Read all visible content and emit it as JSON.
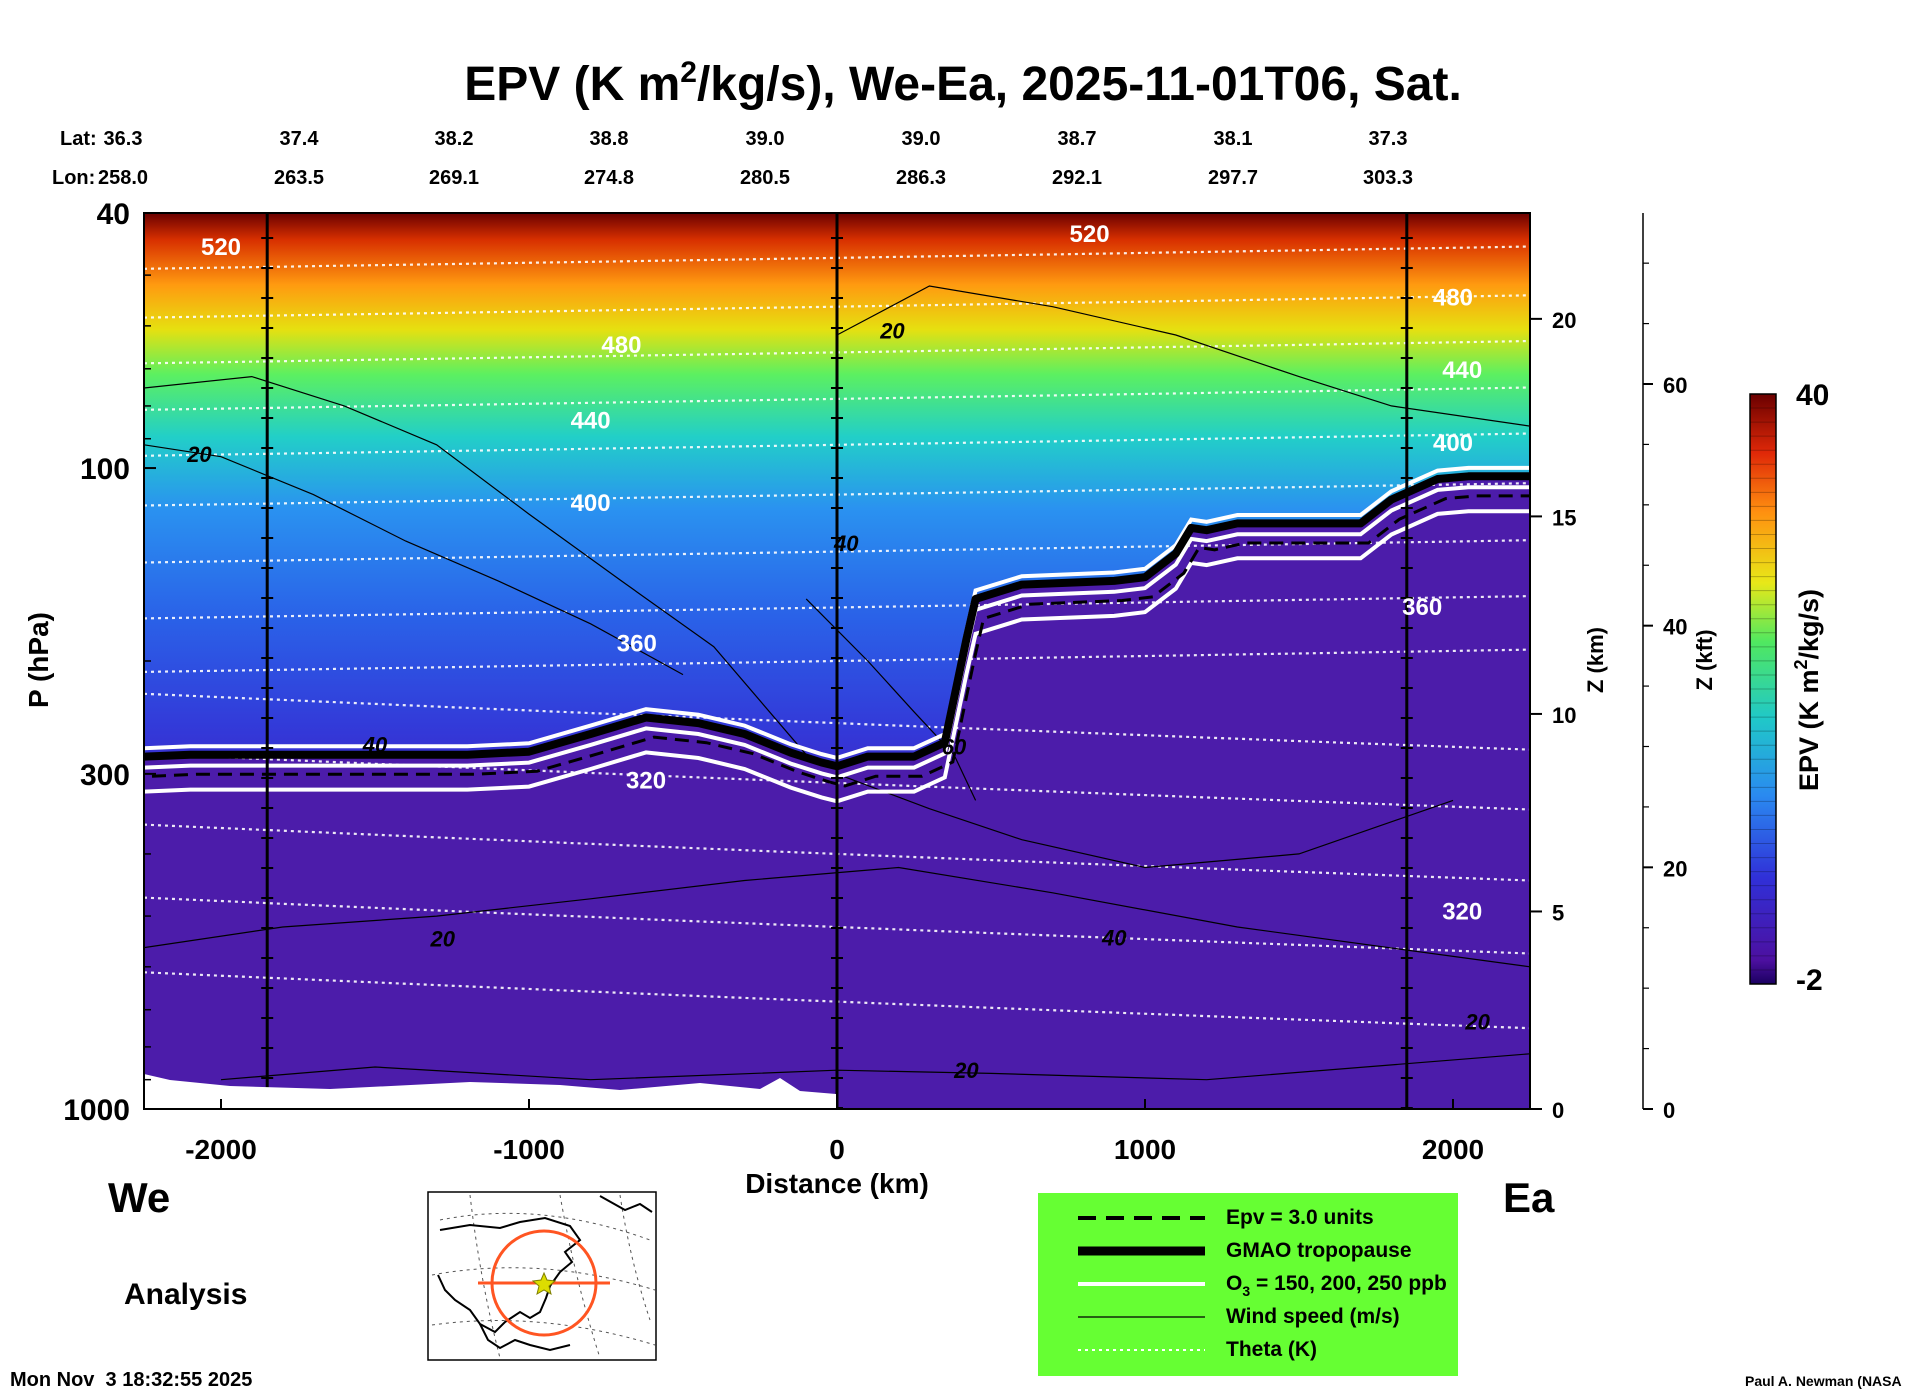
{
  "title_parts": {
    "a": "EPV (K m",
    "sup": "2",
    "b": "/kg/s), We-Ea, 2025-11-01T06, Sat."
  },
  "lat_label": "Lat:",
  "lon_label": "Lon:",
  "lats": [
    "36.3",
    "37.4",
    "38.2",
    "38.8",
    "39.0",
    "39.0",
    "38.7",
    "38.1",
    "37.3"
  ],
  "lons": [
    "258.0",
    "263.5",
    "269.1",
    "274.8",
    "280.5",
    "286.3",
    "292.1",
    "297.7",
    "303.3"
  ],
  "left_label": "We",
  "right_label": "Ea",
  "analysis_label": "Analysis",
  "timestamp": "Mon Nov  3 18:32:55 2025",
  "credit": "Paul A. Newman (NASA",
  "colors": {
    "legend_bg": "#66ff33",
    "map_line": "#ff5522",
    "background_fill": "#4a1aa0"
  },
  "chart_data": {
    "type": "heatmap",
    "title": "EPV (K m2/kg/s), We-Ea, 2025-11-01T06, Sat.",
    "xlabel": "Distance (km)",
    "ylabel": "P (hPa)",
    "ylabel_right1": "Z (km)",
    "ylabel_right2": "Z (kft)",
    "xlim": [
      -2250,
      2250
    ],
    "ylim": [
      1000,
      40
    ],
    "yscale": "log",
    "x_ticks": [
      -2000,
      -1000,
      0,
      1000,
      2000
    ],
    "x_tick_labels": [
      "-2000",
      "-1000",
      "0",
      "1000",
      "2000"
    ],
    "y_ticks": [
      40,
      100,
      300,
      1000
    ],
    "y_tick_labels": [
      "40",
      "100",
      "300",
      "1000"
    ],
    "z_km_ticks": [
      0,
      5,
      10,
      15,
      20
    ],
    "z_km_tick_labels": [
      "0",
      "5",
      "10",
      "15",
      "20"
    ],
    "z_kft_ticks": [
      0,
      20,
      40,
      60
    ],
    "z_kft_tick_labels": [
      "0",
      "20",
      "40",
      "60"
    ],
    "colorbar": {
      "label": "EPV (K m2/kg/s)",
      "label_a": "EPV (K m",
      "label_sup": "2",
      "label_b": "/kg/s)",
      "min": -2,
      "max": 40,
      "min_label": "-2",
      "max_label": "40"
    },
    "vertical_markers_km": [
      -1850,
      0,
      1850
    ],
    "tropopause_hpa": [
      [
        -2250,
        282
      ],
      [
        -2100,
        280
      ],
      [
        -1800,
        280
      ],
      [
        -1500,
        280
      ],
      [
        -1200,
        280
      ],
      [
        -1000,
        277
      ],
      [
        -800,
        260
      ],
      [
        -620,
        245
      ],
      [
        -450,
        250
      ],
      [
        -300,
        260
      ],
      [
        -150,
        278
      ],
      [
        -50,
        288
      ],
      [
        0,
        292
      ],
      [
        100,
        282
      ],
      [
        250,
        282
      ],
      [
        350,
        268
      ],
      [
        420,
        185
      ],
      [
        450,
        160
      ],
      [
        600,
        152
      ],
      [
        900,
        150
      ],
      [
        1000,
        148
      ],
      [
        1100,
        136
      ],
      [
        1150,
        124
      ],
      [
        1200,
        125
      ],
      [
        1300,
        122
      ],
      [
        1500,
        122
      ],
      [
        1700,
        122
      ],
      [
        1800,
        112
      ],
      [
        1950,
        104
      ],
      [
        2050,
        103
      ],
      [
        2250,
        103
      ]
    ],
    "ozone_contours_ppb": [
      "150",
      "200",
      "250"
    ],
    "theta_labels": [
      {
        "text": "520",
        "x": -2000,
        "p": 45
      },
      {
        "text": "480",
        "x": -700,
        "p": 64
      },
      {
        "text": "440",
        "x": -800,
        "p": 84
      },
      {
        "text": "400",
        "x": -800,
        "p": 113
      },
      {
        "text": "360",
        "x": -650,
        "p": 187
      },
      {
        "text": "320",
        "x": -620,
        "p": 306
      },
      {
        "text": "520",
        "x": 820,
        "p": 43
      },
      {
        "text": "480",
        "x": 2000,
        "p": 54
      },
      {
        "text": "440",
        "x": 2030,
        "p": 70
      },
      {
        "text": "400",
        "x": 2000,
        "p": 91
      },
      {
        "text": "360",
        "x": 1900,
        "p": 164
      },
      {
        "text": "320",
        "x": 2030,
        "p": 490
      }
    ],
    "wind_labels": [
      {
        "text": "20",
        "x": 180,
        "p": 61
      },
      {
        "text": "20",
        "x": -2070,
        "p": 95
      },
      {
        "text": "40",
        "x": 30,
        "p": 131
      },
      {
        "text": "40",
        "x": -1500,
        "p": 270
      },
      {
        "text": "60",
        "x": 380,
        "p": 272
      },
      {
        "text": "20",
        "x": -1280,
        "p": 542
      },
      {
        "text": "40",
        "x": 900,
        "p": 540
      },
      {
        "text": "20",
        "x": 2080,
        "p": 730
      },
      {
        "text": "20",
        "x": 420,
        "p": 870
      }
    ],
    "legend": [
      {
        "label": "Epv = 3.0 units",
        "style": "dashed"
      },
      {
        "label": "GMAO tropopause",
        "style": "thick-black"
      },
      {
        "label": "O3 = 150, 200, 250 ppb",
        "label_a": "O",
        "label_sub": "3",
        "label_b": " = 150, 200, 250 ppb",
        "style": "white"
      },
      {
        "label": "Wind speed (m/s)",
        "style": "thin-black"
      },
      {
        "label": "Theta (K)",
        "style": "dotted-white"
      }
    ]
  }
}
